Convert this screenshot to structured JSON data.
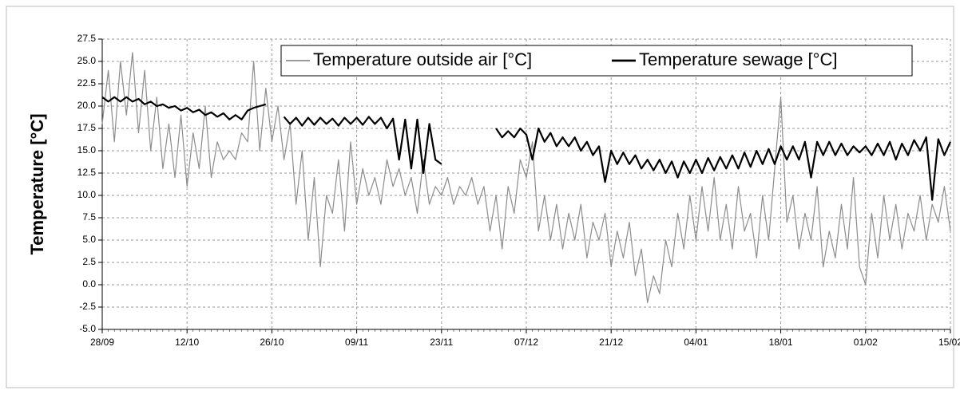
{
  "chart_data": {
    "type": "line",
    "ylabel": "Temperature  [°C]",
    "x": [
      0,
      1,
      2,
      3,
      4,
      5,
      6,
      7,
      8,
      9,
      10,
      11,
      12,
      13,
      14,
      15,
      16,
      17,
      18,
      19,
      20,
      21,
      22,
      23,
      24,
      25,
      26,
      27,
      28,
      29,
      30,
      31,
      32,
      33,
      34,
      35,
      36,
      37,
      38,
      39,
      40,
      41,
      42,
      43,
      44,
      45,
      46,
      47,
      48,
      49,
      50,
      51,
      52,
      53,
      54,
      55,
      56,
      57,
      58,
      59,
      60,
      61,
      62,
      63,
      64,
      65,
      66,
      67,
      68,
      69,
      70,
      71,
      72,
      73,
      74,
      75,
      76,
      77,
      78,
      79,
      80,
      81,
      82,
      83,
      84,
      85,
      86,
      87,
      88,
      89,
      90,
      91,
      92,
      93,
      94,
      95,
      96,
      97,
      98,
      99,
      100,
      101,
      102,
      103,
      104,
      105,
      106,
      107,
      108,
      109,
      110,
      111,
      112,
      113,
      114,
      115,
      116,
      117,
      118,
      119,
      120,
      121,
      122,
      123,
      124,
      125,
      126,
      127,
      128,
      129,
      130,
      131,
      132,
      133,
      134,
      135,
      136,
      137,
      138,
      139,
      140
    ],
    "series": [
      {
        "name": "Temperature outside air [°C]",
        "color": "#8c8c8c",
        "values": [
          18,
          24,
          16,
          25,
          19,
          26,
          17,
          24,
          15,
          21,
          13,
          18,
          12,
          19,
          11,
          17,
          13,
          20,
          12,
          16,
          14,
          15,
          14,
          17,
          16,
          25,
          15,
          22,
          16,
          20,
          14,
          18,
          9,
          15,
          5,
          12,
          2,
          10,
          8,
          14,
          6,
          16,
          9,
          13,
          10,
          12,
          9,
          14,
          11,
          13,
          10,
          12,
          8,
          14,
          9,
          11,
          10,
          12,
          9,
          11,
          10,
          12,
          9,
          11,
          6,
          10,
          4,
          11,
          8,
          14,
          12,
          16,
          6,
          10,
          5,
          9,
          4,
          8,
          5,
          9,
          3,
          7,
          5,
          8,
          2,
          6,
          3,
          7,
          1,
          4,
          -2,
          1,
          -1,
          5,
          2,
          8,
          4,
          10,
          5,
          11,
          6,
          12,
          5,
          9,
          4,
          11,
          6,
          8,
          3,
          10,
          5,
          13,
          21,
          7,
          10,
          4,
          8,
          5,
          11,
          2,
          6,
          3,
          9,
          4,
          12,
          2,
          0,
          8,
          3,
          10,
          5,
          9,
          4,
          8,
          6,
          10,
          5,
          9,
          7,
          11,
          6
        ]
      },
      {
        "name": "Temperature sewage [°C]",
        "color": "#000000",
        "values": [
          21,
          20.5,
          21,
          20.5,
          21,
          20.5,
          20.8,
          20.2,
          20.5,
          20,
          20.2,
          19.8,
          20,
          19.5,
          19.8,
          19.3,
          19.6,
          19,
          19.3,
          18.8,
          19.2,
          18.5,
          19,
          18.5,
          19.5,
          19.8,
          20,
          20.2,
          null,
          null,
          18.8,
          18,
          18.7,
          17.8,
          18.7,
          17.9,
          18.7,
          18,
          18.6,
          17.8,
          18.7,
          18,
          18.7,
          17.9,
          18.8,
          18,
          18.7,
          17.5,
          18.6,
          14,
          18.5,
          13,
          18.5,
          12.5,
          18,
          14,
          13.5,
          null,
          null,
          null,
          null,
          null,
          null,
          null,
          null,
          17.5,
          16.5,
          17.2,
          16.5,
          17.5,
          16.8,
          14,
          17.5,
          16,
          17,
          15.5,
          16.5,
          15.5,
          16.5,
          15,
          16,
          14.5,
          15.5,
          11.5,
          15,
          13.5,
          14.8,
          13.5,
          14.5,
          13,
          14,
          12.8,
          14,
          12.5,
          13.8,
          12,
          13.8,
          12.5,
          14,
          12.5,
          14.2,
          12.8,
          14.3,
          13,
          14.5,
          13,
          14.8,
          13.2,
          15,
          13.5,
          15.2,
          13.5,
          15.5,
          14,
          15.5,
          14,
          16,
          12,
          16,
          14.5,
          16,
          14.5,
          15.8,
          14.5,
          15.5,
          14.8,
          15.5,
          14.5,
          15.8,
          14.5,
          16,
          14,
          15.8,
          14.5,
          16.2,
          15,
          16.5,
          9.5,
          16.3,
          14.5,
          16
        ]
      }
    ],
    "xlim": [
      0,
      140
    ],
    "xticks": [
      {
        "value": 0,
        "label": "28/09"
      },
      {
        "value": 14,
        "label": "12/10"
      },
      {
        "value": 28,
        "label": "26/10"
      },
      {
        "value": 42,
        "label": "09/11"
      },
      {
        "value": 56,
        "label": "23/11"
      },
      {
        "value": 70,
        "label": "07/12"
      },
      {
        "value": 84,
        "label": "21/12"
      },
      {
        "value": 98,
        "label": "04/01"
      },
      {
        "value": 112,
        "label": "18/01"
      },
      {
        "value": 126,
        "label": "01/02"
      },
      {
        "value": 140,
        "label": "15/02"
      }
    ],
    "ylim": [
      -5,
      27.5
    ],
    "yticks": [
      {
        "value": -5,
        "label": "-5.0"
      },
      {
        "value": -2.5,
        "label": "-2.5"
      },
      {
        "value": 0,
        "label": "0.0"
      },
      {
        "value": 2.5,
        "label": "2.5"
      },
      {
        "value": 5,
        "label": "5.0"
      },
      {
        "value": 7.5,
        "label": "7.5"
      },
      {
        "value": 10,
        "label": "10.0"
      },
      {
        "value": 12.5,
        "label": "12.5"
      },
      {
        "value": 15,
        "label": "15.0"
      },
      {
        "value": 17.5,
        "label": "17.5"
      },
      {
        "value": 20,
        "label": "20.0"
      },
      {
        "value": 22.5,
        "label": "22.5"
      },
      {
        "value": 25,
        "label": "25.0"
      },
      {
        "value": 27.5,
        "label": "27.5"
      }
    ],
    "grid": true,
    "legend": "top-right"
  }
}
